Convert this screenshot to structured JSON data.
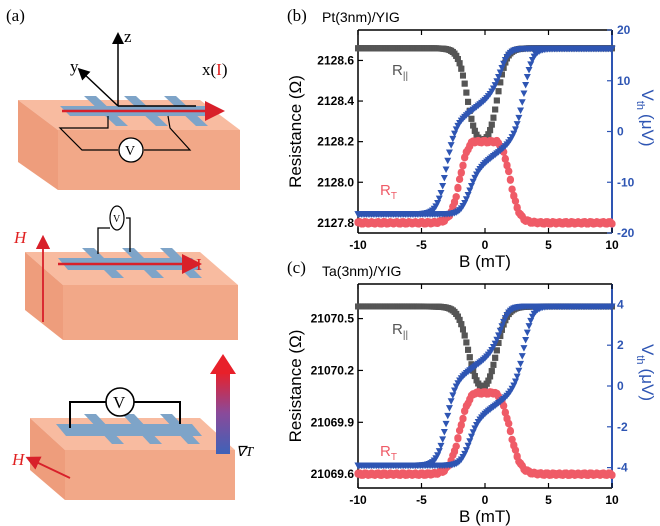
{
  "panels": {
    "a": "(a)",
    "b": "(b)",
    "c": "(c)"
  },
  "diagram": {
    "axis_z": "z",
    "axis_y": "y",
    "axis_x": "x(",
    "axis_x_I": "I",
    "axis_x_close": ")",
    "volt": "V",
    "H_label": "H",
    "I_label": "I",
    "grad_label": "∇T"
  },
  "colors": {
    "block_top": "#f8bba0",
    "block_side": "#ee9d7c",
    "strip": "#7ea4c8",
    "current": "#d8202a",
    "gray_series": "#555555",
    "red_series": "#ef5b67",
    "blue_series": "#2e55b3"
  },
  "chart_data": [
    {
      "type": "scatter",
      "title": "Pt(3nm)/YIG",
      "xlabel": "B (mT)",
      "ylabel": "Resistance (Ω)",
      "ylabel_right_main": "V",
      "ylabel_right_sub": "th",
      "ylabel_right_unit": "(μV)",
      "xlim": [
        -10,
        10
      ],
      "ylim": [
        2127.75,
        2128.75
      ],
      "ylim_right": [
        -20,
        20
      ],
      "xticks": [
        -10,
        -5,
        0,
        5,
        10
      ],
      "yticks": [
        2127.8,
        2128.0,
        2128.2,
        2128.4,
        2128.6
      ],
      "yticks_right": [
        -20,
        -10,
        0,
        10,
        20
      ],
      "ytick_labels": [
        "2127.8",
        "2128.0",
        "2128.2",
        "2128.4",
        "2128.6"
      ],
      "annotations": {
        "R_par": "R",
        "R_par_sub": "||",
        "R_T": "R",
        "R_T_sub": "T"
      },
      "series": [
        {
          "name": "R||",
          "axis": "left",
          "color": "#555555",
          "marker": "square",
          "center": -1.4,
          "width": 0.35,
          "center2": 1.4,
          "base": 2128.66,
          "dip": 2128.2,
          "shape": "dip"
        },
        {
          "name": "RT",
          "axis": "left",
          "color": "#ef5b67",
          "marker": "circle",
          "center": -2.0,
          "width": 0.35,
          "center2": 2.0,
          "base": 2127.8,
          "dip": 2128.2,
          "shape": "bump"
        },
        {
          "name": "Vth",
          "axis": "right",
          "color": "#2e55b3",
          "marker": "triangle",
          "low": -16.3,
          "high": 16.3,
          "mid_low": -6,
          "mid_high": 6,
          "shape": "hysteresis"
        }
      ]
    },
    {
      "type": "scatter",
      "title": "Ta(3nm)/YIG",
      "xlabel": "B (mT)",
      "ylabel": "Resistance (Ω)",
      "ylabel_right_main": "V",
      "ylabel_right_sub": "th",
      "ylabel_right_unit": "(μV)",
      "xlim": [
        -10,
        10
      ],
      "ylim": [
        21069.52,
        21070.7
      ],
      "ylim_right": [
        -5,
        5
      ],
      "xticks": [
        -10,
        -5,
        0,
        5,
        10
      ],
      "yticks": [
        21069.6,
        21069.9,
        21070.2,
        21070.5
      ],
      "yticks_right": [
        -4,
        -2,
        0,
        2,
        4
      ],
      "ytick_labels": [
        "21069.6",
        "21069.9",
        "21070.2",
        "21070.5"
      ],
      "annotations": {
        "R_par": "R",
        "R_par_sub": "||",
        "R_T": "R",
        "R_T_sub": "T"
      },
      "series": [
        {
          "name": "R||",
          "axis": "left",
          "color": "#555555",
          "marker": "square",
          "center": -1.3,
          "width": 0.4,
          "center2": 1.3,
          "base": 21070.57,
          "dip": 21070.07,
          "shape": "dip"
        },
        {
          "name": "RT",
          "axis": "left",
          "color": "#ef5b67",
          "marker": "circle",
          "center": -2.0,
          "width": 0.4,
          "center2": 2.0,
          "base": 21069.6,
          "dip": 21070.07,
          "shape": "bump"
        },
        {
          "name": "Vth",
          "axis": "right",
          "color": "#2e55b3",
          "marker": "triangle",
          "low": -3.9,
          "high": 3.9,
          "mid_low": -1.3,
          "mid_high": 1.3,
          "shape": "hysteresis"
        }
      ]
    }
  ]
}
